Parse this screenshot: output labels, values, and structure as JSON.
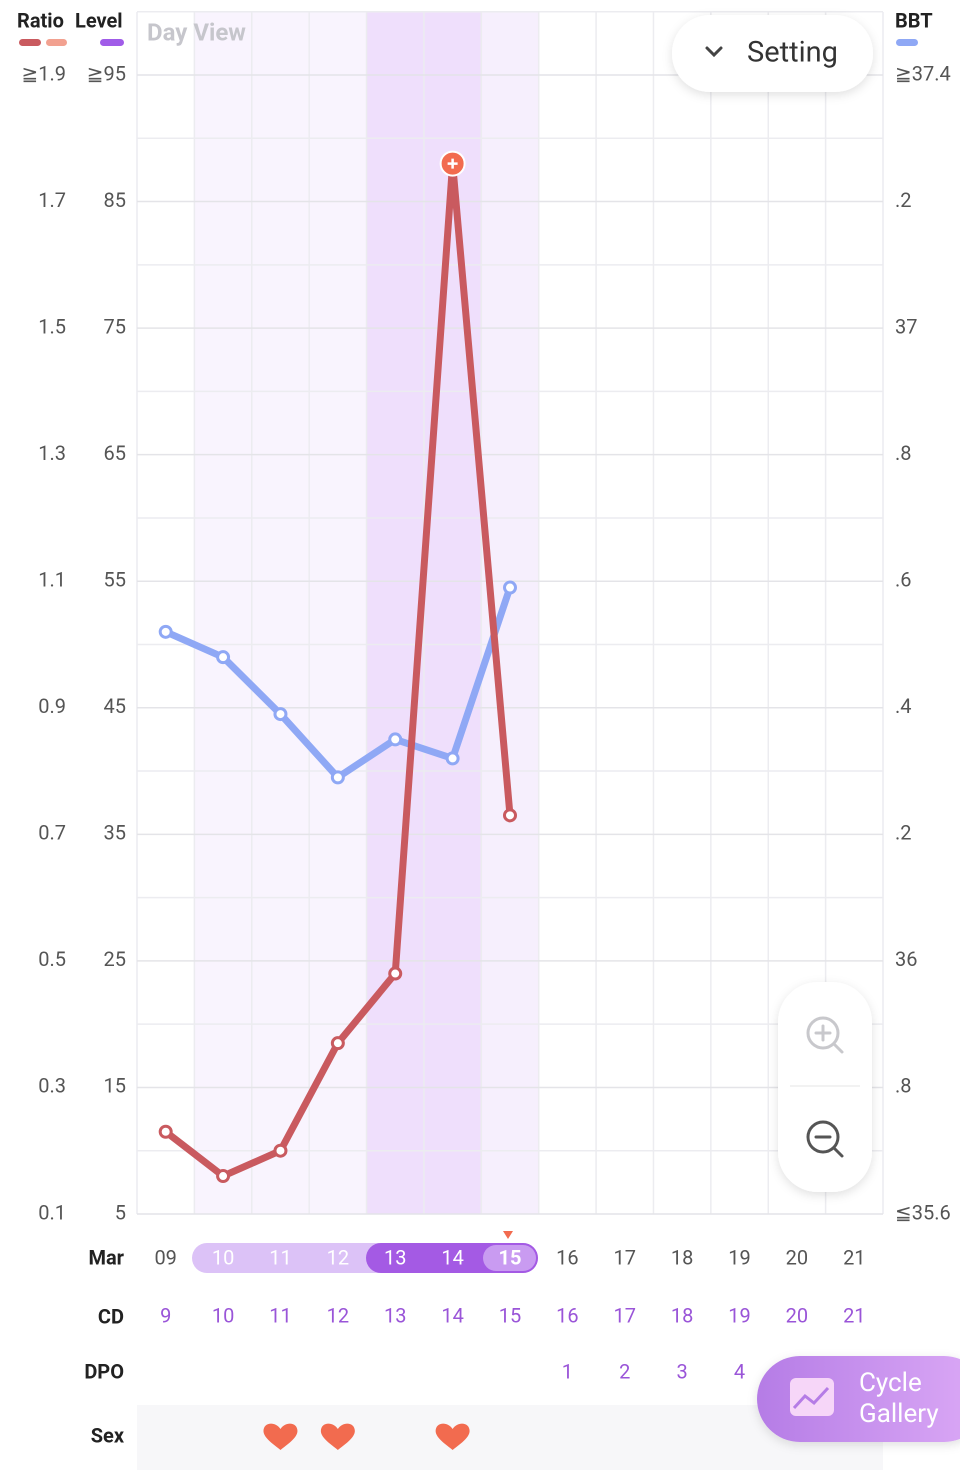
{
  "header": {
    "level_label": "Level",
    "view_label": "Day View",
    "setting_label": "Setting"
  },
  "chart_data": {
    "type": "line",
    "categories": [
      "09",
      "10",
      "11",
      "12",
      "13",
      "14",
      "15",
      "16",
      "17",
      "18",
      "19",
      "20",
      "21"
    ],
    "series": [
      {
        "name": "Ratio",
        "color": "#c95a5f",
        "values": [
          0.23,
          0.16,
          0.2,
          0.37,
          0.48,
          1.76,
          0.73,
          null,
          null,
          null,
          null,
          null,
          null
        ]
      },
      {
        "name": "BBT",
        "color": "#8fa8f5",
        "axis": "y2",
        "values": [
          36.52,
          36.48,
          36.39,
          36.29,
          36.35,
          36.32,
          36.59,
          null,
          null,
          null,
          null,
          null,
          null
        ]
      }
    ],
    "ylim": [
      0.1,
      1.9
    ],
    "yticks": [
      {
        "value": 0.1,
        "label": "0.1"
      },
      {
        "value": 0.3,
        "label": "0.3"
      },
      {
        "value": 0.5,
        "label": "0.5"
      },
      {
        "value": 0.7,
        "label": "0.7"
      },
      {
        "value": 0.9,
        "label": "0.9"
      },
      {
        "value": 1.1,
        "label": "1.1"
      },
      {
        "value": 1.3,
        "label": "1.3"
      },
      {
        "value": 1.5,
        "label": "1.5"
      },
      {
        "value": 1.7,
        "label": "1.7"
      },
      {
        "value": 1.9,
        "label": "≧1.9"
      }
    ],
    "level_lim": [
      5,
      95
    ],
    "level_ticks": [
      5,
      15,
      25,
      35,
      45,
      55,
      65,
      75,
      85,
      {
        "value": 95,
        "label": "≧95"
      }
    ],
    "y2lim": [
      35.6,
      37.4
    ],
    "y2ticks": [
      {
        "value": 35.6,
        "label": "≦35.6"
      },
      {
        "value": 35.8,
        "label": ".8"
      },
      36,
      {
        "value": 36.2,
        "label": ".2"
      },
      {
        "value": 36.4,
        "label": ".4"
      },
      {
        "value": 36.6,
        "label": ".6"
      },
      {
        "value": 36.8,
        "label": ".8"
      },
      37,
      {
        "value": 37.2,
        "label": ".2"
      },
      {
        "value": 37.4,
        "label": "≧37.4"
      }
    ],
    "grid": true
  },
  "rows": {
    "month": "Mar",
    "cd_label": "CD",
    "cd": [
      9,
      10,
      11,
      12,
      13,
      14,
      15,
      16,
      17,
      18,
      19,
      20,
      21
    ],
    "dpo_label": "DPO",
    "dpo": [
      null,
      null,
      null,
      null,
      null,
      null,
      null,
      1,
      2,
      3,
      4,
      null,
      null
    ],
    "sex_label": "Sex",
    "sex": [
      false,
      false,
      true,
      true,
      false,
      true,
      false,
      false,
      false,
      false,
      false,
      false,
      false
    ]
  },
  "buttons": {
    "cycle_gallery_1": "Cycle",
    "cycle_gallery_2": "Gallery"
  }
}
